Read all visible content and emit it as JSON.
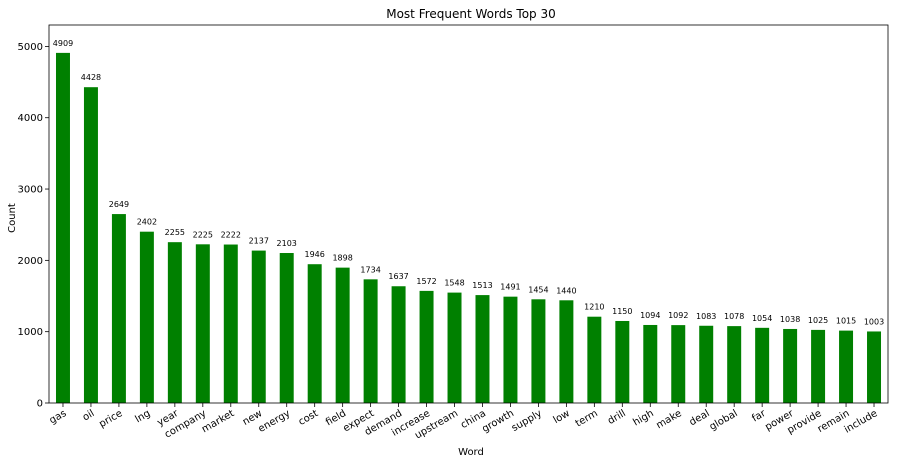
{
  "chart_data": {
    "type": "bar",
    "title": "Most Frequent Words Top 30",
    "xlabel": "Word",
    "ylabel": "Count",
    "ylim": [
      0,
      5300
    ],
    "yticks": [
      0,
      1000,
      2000,
      3000,
      4000,
      5000
    ],
    "bar_color": "#008000",
    "grid": false,
    "categories": [
      "gas",
      "oil",
      "price",
      "lng",
      "year",
      "company",
      "market",
      "new",
      "energy",
      "cost",
      "field",
      "expect",
      "demand",
      "increase",
      "upstream",
      "china",
      "growth",
      "supply",
      "low",
      "term",
      "drill",
      "high",
      "make",
      "deal",
      "global",
      "far",
      "power",
      "provide",
      "remain",
      "include"
    ],
    "values": [
      4909,
      4428,
      2649,
      2402,
      2255,
      2225,
      2222,
      2137,
      2103,
      1946,
      1898,
      1734,
      1637,
      1572,
      1548,
      1513,
      1491,
      1454,
      1440,
      1210,
      1150,
      1094,
      1092,
      1083,
      1078,
      1054,
      1038,
      1025,
      1015,
      1003
    ],
    "data_labels": [
      "4909",
      "4428",
      "2649",
      "2402",
      "2255",
      "2225",
      "2222",
      "2137",
      "2103",
      "1946",
      "1898",
      "1734",
      "1637",
      "1572",
      "1548",
      "1513",
      "1491",
      "1454",
      "1440",
      "1210",
      "1150",
      "1094",
      "1092",
      "1083",
      "1078",
      "1054",
      "1038",
      "1025",
      "1015",
      "1003"
    ]
  }
}
